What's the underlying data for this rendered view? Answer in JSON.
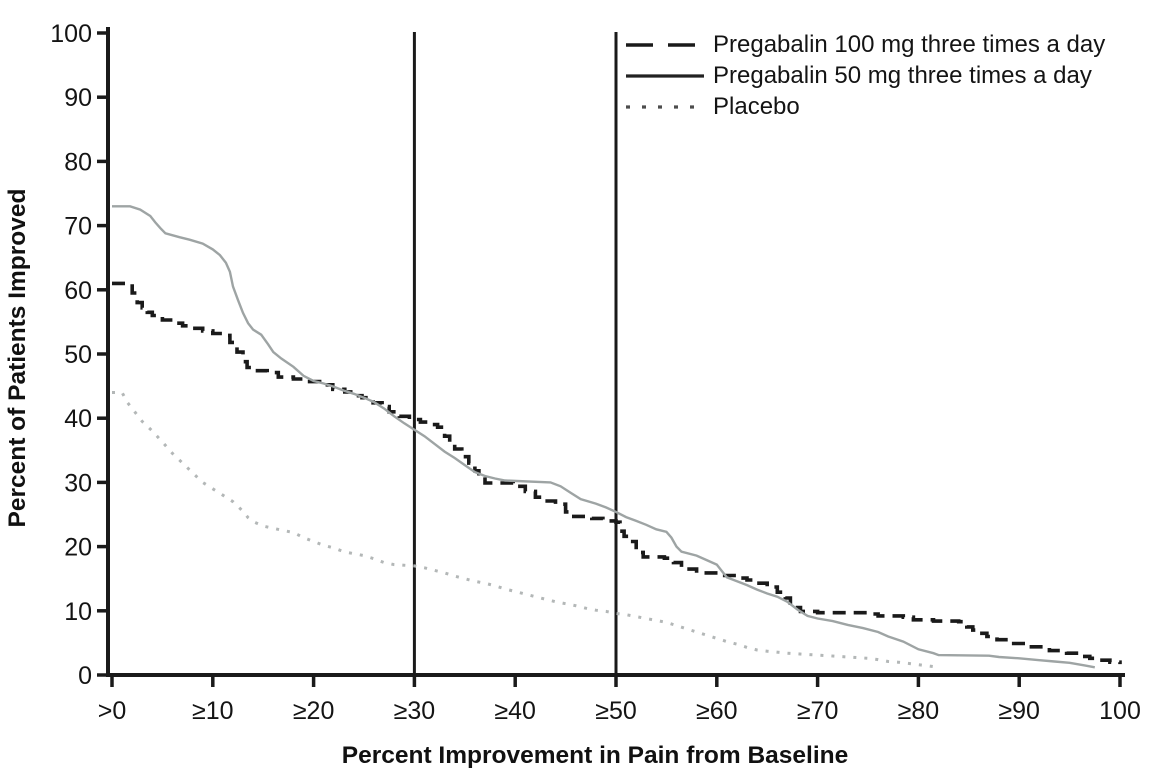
{
  "page": {
    "background": "#ffffff"
  },
  "chart_data": {
    "type": "line",
    "title": "",
    "xlabel": "Percent Improvement in Pain from Baseline",
    "ylabel": "Percent of Patients Improved",
    "xlim": [
      0,
      100
    ],
    "ylim": [
      0,
      100
    ],
    "grid": false,
    "legend_position": "top-right",
    "axis_color": "#1a1a1a",
    "text_color": "#141414",
    "reference_lines_x": [
      30,
      50
    ],
    "y_ticks": [
      0,
      10,
      20,
      30,
      40,
      50,
      60,
      70,
      80,
      90,
      100
    ],
    "x_ticks": [
      {
        "value": 0,
        "label": ">0"
      },
      {
        "value": 10,
        "label": "≥10"
      },
      {
        "value": 20,
        "label": "≥20"
      },
      {
        "value": 30,
        "label": "≥30"
      },
      {
        "value": 40,
        "label": "≥40"
      },
      {
        "value": 50,
        "label": "≥50"
      },
      {
        "value": 60,
        "label": "≥60"
      },
      {
        "value": 70,
        "label": "≥70"
      },
      {
        "value": 80,
        "label": "≥80"
      },
      {
        "value": 90,
        "label": "≥90"
      },
      {
        "value": 100,
        "label": "100"
      }
    ],
    "series": [
      {
        "name": "Pregabalin 100 mg three times a day",
        "style": "dashed",
        "color": "#1a1a1a",
        "legend_color": "#1a1a1a",
        "width": 3.6,
        "step": true,
        "points": [
          [
            0,
            61
          ],
          [
            1.7,
            61
          ],
          [
            2,
            59.5
          ],
          [
            2.5,
            58
          ],
          [
            3,
            57.2
          ],
          [
            3.5,
            56.5
          ],
          [
            4,
            56
          ],
          [
            5,
            55.3
          ],
          [
            6,
            54.8
          ],
          [
            7,
            54.4
          ],
          [
            8,
            54
          ],
          [
            9,
            53.6
          ],
          [
            10,
            53.2
          ],
          [
            11,
            52.9
          ],
          [
            11.7,
            51.8
          ],
          [
            12.4,
            50.3
          ],
          [
            13,
            48.8
          ],
          [
            13.4,
            47.9
          ],
          [
            14,
            47.4
          ],
          [
            15.4,
            47.1
          ],
          [
            16.5,
            46.4
          ],
          [
            18,
            46.1
          ],
          [
            19.3,
            45.7
          ],
          [
            20.6,
            45.2
          ],
          [
            21.9,
            44.5
          ],
          [
            23.1,
            44.1
          ],
          [
            24,
            43.5
          ],
          [
            24.8,
            43.2
          ],
          [
            25.9,
            42.4
          ],
          [
            26.8,
            41.8
          ],
          [
            27.5,
            41
          ],
          [
            28.5,
            40.3
          ],
          [
            29.5,
            39.8
          ],
          [
            30.6,
            39.4
          ],
          [
            31.5,
            39
          ],
          [
            32.3,
            38.6
          ],
          [
            33,
            37.2
          ],
          [
            33.5,
            36.3
          ],
          [
            34,
            35.2
          ],
          [
            34.7,
            34
          ],
          [
            35.4,
            33
          ],
          [
            36,
            31.8
          ],
          [
            36.4,
            30.8
          ],
          [
            37,
            29.9
          ],
          [
            39.8,
            29.4
          ],
          [
            41,
            28.6
          ],
          [
            42,
            27.7
          ],
          [
            42.8,
            27.1
          ],
          [
            44,
            26.6
          ],
          [
            45,
            25.4
          ],
          [
            45.6,
            24.7
          ],
          [
            47.6,
            24.4
          ],
          [
            48.7,
            24
          ],
          [
            50,
            23.8
          ],
          [
            50.4,
            22.4
          ],
          [
            50.8,
            21.6
          ],
          [
            51.3,
            20.8
          ],
          [
            52,
            19.1
          ],
          [
            52.7,
            18.4
          ],
          [
            54.8,
            18.2
          ],
          [
            55.7,
            17.5
          ],
          [
            56.5,
            16.5
          ],
          [
            58,
            15.9
          ],
          [
            60.5,
            15.5
          ],
          [
            62,
            15.1
          ],
          [
            63,
            14.8
          ],
          [
            64,
            14.3
          ],
          [
            65,
            13.7
          ],
          [
            66,
            12.9
          ],
          [
            66.8,
            12
          ],
          [
            67.3,
            10.5
          ],
          [
            68.3,
            9.9
          ],
          [
            70,
            9.7
          ],
          [
            75,
            9.5
          ],
          [
            76,
            9.2
          ],
          [
            78.5,
            9
          ],
          [
            79.5,
            8.6
          ],
          [
            81.5,
            8.4
          ],
          [
            84,
            8.3
          ],
          [
            84.8,
            7.5
          ],
          [
            85.4,
            7
          ],
          [
            86.1,
            6.5
          ],
          [
            86.8,
            6
          ],
          [
            87.8,
            5.5
          ],
          [
            89.1,
            4.9
          ],
          [
            90.4,
            4.4
          ],
          [
            93,
            3.8
          ],
          [
            94.7,
            3.4
          ],
          [
            96,
            2.9
          ],
          [
            97,
            2.6
          ],
          [
            98,
            2.3
          ],
          [
            99,
            2
          ],
          [
            100,
            1.7
          ]
        ]
      },
      {
        "name": "Pregabalin 50 mg three times a day",
        "style": "solid",
        "color": "#9ea4a4",
        "legend_color": "#222222",
        "width": 2.4,
        "step": false,
        "points": [
          [
            0,
            73
          ],
          [
            1.8,
            73
          ],
          [
            2.8,
            72.5
          ],
          [
            3.8,
            71.5
          ],
          [
            4.3,
            70.5
          ],
          [
            4.8,
            69.6
          ],
          [
            5.3,
            68.8
          ],
          [
            6.7,
            68.2
          ],
          [
            7.7,
            67.8
          ],
          [
            9,
            67.2
          ],
          [
            10,
            66.3
          ],
          [
            10.7,
            65.4
          ],
          [
            11.3,
            64.2
          ],
          [
            11.7,
            62.8
          ],
          [
            12,
            60.5
          ],
          [
            12.5,
            58.4
          ],
          [
            13,
            56.4
          ],
          [
            13.5,
            54.8
          ],
          [
            14,
            53.8
          ],
          [
            14.8,
            53
          ],
          [
            15.5,
            51.5
          ],
          [
            16,
            50.3
          ],
          [
            16.8,
            49.3
          ],
          [
            18,
            48
          ],
          [
            19,
            46.6
          ],
          [
            19.5,
            46.2
          ],
          [
            20,
            45.8
          ],
          [
            21,
            45.4
          ],
          [
            22,
            44.9
          ],
          [
            23,
            44.3
          ],
          [
            24,
            43.8
          ],
          [
            25,
            43.2
          ],
          [
            26,
            42.5
          ],
          [
            27,
            41.5
          ],
          [
            28,
            40.3
          ],
          [
            29,
            39.2
          ],
          [
            30,
            38.2
          ],
          [
            31,
            37.2
          ],
          [
            32,
            36
          ],
          [
            33,
            34.8
          ],
          [
            34,
            33.8
          ],
          [
            35,
            32.7
          ],
          [
            36,
            31.6
          ],
          [
            37,
            31
          ],
          [
            38,
            30.6
          ],
          [
            39,
            30.3
          ],
          [
            43.5,
            30
          ],
          [
            44.5,
            29.4
          ],
          [
            45.5,
            28.4
          ],
          [
            46.5,
            27.4
          ],
          [
            48,
            26.7
          ],
          [
            49,
            26.1
          ],
          [
            50,
            25.4
          ],
          [
            51,
            24.6
          ],
          [
            52,
            24
          ],
          [
            53,
            23.4
          ],
          [
            54,
            22.7
          ],
          [
            55,
            22.3
          ],
          [
            55.5,
            21.4
          ],
          [
            56,
            20
          ],
          [
            56.5,
            19.2
          ],
          [
            58,
            18.6
          ],
          [
            59,
            17.9
          ],
          [
            60,
            17.2
          ],
          [
            60.5,
            16.2
          ],
          [
            61,
            15.2
          ],
          [
            62,
            14.6
          ],
          [
            63,
            14
          ],
          [
            64,
            13.3
          ],
          [
            65,
            12.7
          ],
          [
            66,
            12.2
          ],
          [
            67,
            11.4
          ],
          [
            68,
            10.2
          ],
          [
            69,
            9.2
          ],
          [
            70,
            8.8
          ],
          [
            71.5,
            8.4
          ],
          [
            73,
            7.8
          ],
          [
            74.5,
            7.3
          ],
          [
            76,
            6.7
          ],
          [
            77,
            6
          ],
          [
            78.5,
            5.2
          ],
          [
            80,
            4
          ],
          [
            81.5,
            3.4
          ],
          [
            82,
            3.1
          ],
          [
            87,
            3
          ],
          [
            88,
            2.8
          ],
          [
            90,
            2.6
          ],
          [
            92,
            2.3
          ],
          [
            93.5,
            2.1
          ],
          [
            95,
            1.9
          ],
          [
            96.5,
            1.5
          ],
          [
            97.5,
            1.2
          ]
        ]
      },
      {
        "name": "Placebo",
        "style": "dotted",
        "color": "#b3b7b7",
        "legend_color": "#4d4d4d",
        "width": 3,
        "step": false,
        "points": [
          [
            0,
            44
          ],
          [
            1,
            44
          ],
          [
            1.5,
            42.5
          ],
          [
            2,
            41.5
          ],
          [
            3,
            39.5
          ],
          [
            4,
            38
          ],
          [
            5,
            36.3
          ],
          [
            6,
            34.5
          ],
          [
            7,
            33
          ],
          [
            8,
            31.5
          ],
          [
            9,
            30
          ],
          [
            10,
            29
          ],
          [
            11,
            28
          ],
          [
            12,
            27
          ],
          [
            13,
            25.5
          ],
          [
            13.5,
            24.5
          ],
          [
            14,
            23.9
          ],
          [
            15,
            23.2
          ],
          [
            17,
            22.5
          ],
          [
            18,
            22.2
          ],
          [
            19,
            21.4
          ],
          [
            20,
            20.8
          ],
          [
            21,
            20.2
          ],
          [
            22,
            19.8
          ],
          [
            23,
            19.2
          ],
          [
            24,
            18.9
          ],
          [
            25,
            18.6
          ],
          [
            26,
            18.1
          ],
          [
            27,
            17.5
          ],
          [
            28,
            17.2
          ],
          [
            30,
            17
          ],
          [
            31,
            16.7
          ],
          [
            32,
            16.3
          ],
          [
            33,
            15.9
          ],
          [
            34,
            15.4
          ],
          [
            35,
            15
          ],
          [
            36,
            14.6
          ],
          [
            37,
            14.3
          ],
          [
            38,
            13.9
          ],
          [
            39,
            13.4
          ],
          [
            40,
            13
          ],
          [
            41,
            12.6
          ],
          [
            42,
            12.2
          ],
          [
            43,
            11.8
          ],
          [
            44,
            11.4
          ],
          [
            45,
            11.1
          ],
          [
            46,
            10.8
          ],
          [
            47,
            10.4
          ],
          [
            48,
            10.1
          ],
          [
            49,
            9.9
          ],
          [
            50,
            9.6
          ],
          [
            51,
            9.4
          ],
          [
            52,
            9.1
          ],
          [
            53,
            8.8
          ],
          [
            54,
            8.5
          ],
          [
            55,
            8.2
          ],
          [
            56,
            7.7
          ],
          [
            57,
            7.2
          ],
          [
            58,
            6.7
          ],
          [
            59,
            6.2
          ],
          [
            60,
            5.7
          ],
          [
            61,
            5.2
          ],
          [
            62,
            4.8
          ],
          [
            63,
            4.3
          ],
          [
            64,
            3.9
          ],
          [
            65,
            3.7
          ],
          [
            67,
            3.4
          ],
          [
            69,
            3.2
          ],
          [
            71,
            3
          ],
          [
            73,
            2.8
          ],
          [
            75,
            2.6
          ],
          [
            76,
            2.4
          ],
          [
            77,
            2.1
          ],
          [
            78,
            2
          ],
          [
            79,
            1.8
          ],
          [
            80,
            1.6
          ],
          [
            81,
            1.4
          ],
          [
            82,
            1.2
          ]
        ]
      }
    ]
  }
}
